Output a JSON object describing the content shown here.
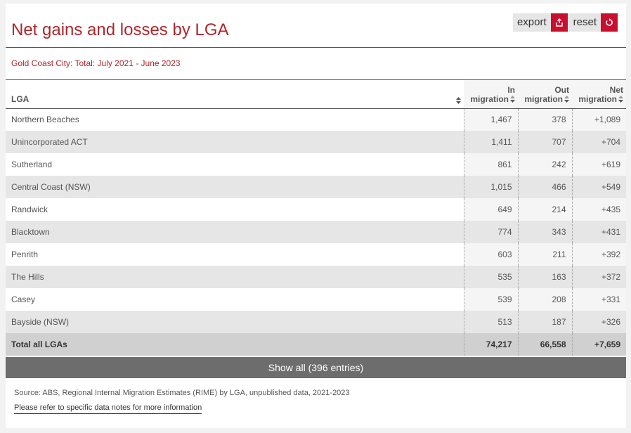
{
  "header": {
    "title": "Net gains and losses by LGA",
    "export_label": "export",
    "reset_label": "reset",
    "accent_color": "#c8102e"
  },
  "subtitle": "Gold Coast City: Total: July 2021 - June 2023",
  "table": {
    "columns": {
      "lga": "LGA",
      "in_line1": "In",
      "in_line2": "migration",
      "out_line1": "Out",
      "out_line2": "migration",
      "net_line1": "Net",
      "net_line2": "migration"
    },
    "rows": [
      {
        "lga": "Northern Beaches",
        "in": "1,467",
        "out": "378",
        "net": "+1,089"
      },
      {
        "lga": "Unincorporated ACT",
        "in": "1,411",
        "out": "707",
        "net": "+704"
      },
      {
        "lga": "Sutherland",
        "in": "861",
        "out": "242",
        "net": "+619"
      },
      {
        "lga": "Central Coast (NSW)",
        "in": "1,015",
        "out": "466",
        "net": "+549"
      },
      {
        "lga": "Randwick",
        "in": "649",
        "out": "214",
        "net": "+435"
      },
      {
        "lga": "Blacktown",
        "in": "774",
        "out": "343",
        "net": "+431"
      },
      {
        "lga": "Penrith",
        "in": "603",
        "out": "211",
        "net": "+392"
      },
      {
        "lga": "The Hills",
        "in": "535",
        "out": "163",
        "net": "+372"
      },
      {
        "lga": "Casey",
        "in": "539",
        "out": "208",
        "net": "+331"
      },
      {
        "lga": "Bayside (NSW)",
        "in": "513",
        "out": "187",
        "net": "+326"
      }
    ],
    "total": {
      "lga": "Total all LGAs",
      "in": "74,217",
      "out": "66,558",
      "net": "+7,659"
    }
  },
  "show_all_label": "Show all (396 entries)",
  "footer": {
    "source": "Source: ABS, Regional Internal Migration Estimates (RIME) by LGA, unpublished data, 2021-2023",
    "notes_link": "Please refer to specific data notes for more information"
  }
}
